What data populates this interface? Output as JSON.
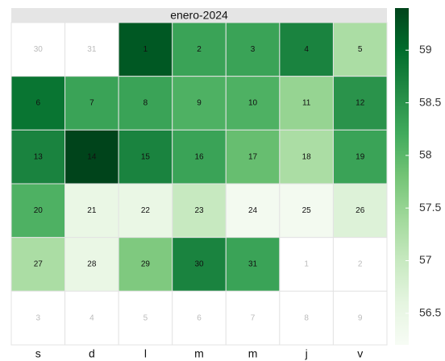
{
  "chart_data": {
    "type": "calendar-heatmap",
    "title": "enero-2024",
    "weekdays": [
      "s",
      "d",
      "l",
      "m",
      "m",
      "j",
      "v"
    ],
    "cells": [
      30,
      31,
      1,
      2,
      3,
      4,
      5,
      6,
      7,
      8,
      9,
      10,
      11,
      12,
      13,
      14,
      15,
      16,
      17,
      18,
      19,
      20,
      21,
      22,
      23,
      24,
      25,
      26,
      27,
      28,
      29,
      30,
      31,
      1,
      2,
      3,
      4,
      5,
      6,
      7,
      8,
      9
    ],
    "values": [
      null,
      null,
      59.2,
      58.3,
      58.3,
      58.7,
      57.3,
      58.9,
      58.3,
      58.3,
      58.1,
      58.1,
      57.5,
      58.5,
      58.7,
      59.4,
      58.7,
      58.3,
      57.9,
      57.3,
      58.3,
      58.1,
      56.5,
      56.5,
      57.0,
      56.3,
      56.3,
      56.7,
      57.3,
      56.5,
      57.7,
      58.7,
      58.3,
      null,
      null,
      null,
      null,
      null,
      null,
      null,
      null,
      null
    ],
    "colors": [
      "#f7fcf5",
      "#e5f5e0",
      "#c7e9c0",
      "#a1d99b",
      "#74c476",
      "#41ab5d",
      "#238b45",
      "#006d2c",
      "#00441b"
    ],
    "clim": [
      56.2,
      59.4
    ],
    "cticks": [
      56.5,
      57,
      57.5,
      58,
      58.5,
      59
    ]
  }
}
